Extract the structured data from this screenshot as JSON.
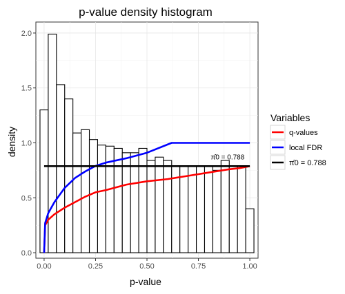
{
  "chart_data": {
    "type": "bar",
    "title": "p-value density histogram",
    "xlabel": "p-value",
    "ylabel": "density",
    "xlim": [
      -0.04,
      1.04
    ],
    "ylim": [
      -0.05,
      2.1
    ],
    "x_ticks": [
      0.0,
      0.25,
      0.5,
      0.75,
      1.0
    ],
    "x_tick_labels": [
      "0.00",
      "0.25",
      "0.50",
      "0.75",
      "1.00"
    ],
    "y_ticks": [
      0.0,
      0.5,
      1.0,
      1.5,
      2.0
    ],
    "y_tick_labels": [
      "0.0",
      "0.5",
      "1.0",
      "1.5",
      "2.0"
    ],
    "grid": true,
    "histogram": {
      "bin_width": 0.04,
      "bin_starts": [
        -0.02,
        0.02,
        0.06,
        0.1,
        0.14,
        0.18,
        0.22,
        0.26,
        0.3,
        0.34,
        0.38,
        0.42,
        0.46,
        0.5,
        0.54,
        0.58,
        0.62,
        0.66,
        0.7,
        0.74,
        0.78,
        0.82,
        0.86,
        0.9,
        0.94,
        0.98
      ],
      "density": [
        1.3,
        1.99,
        1.53,
        1.4,
        1.09,
        1.12,
        1.03,
        0.98,
        0.97,
        0.95,
        0.91,
        0.91,
        0.95,
        0.84,
        0.87,
        0.84,
        0.79,
        0.79,
        0.79,
        0.79,
        0.79,
        0.75,
        0.84,
        0.79,
        0.79,
        0.4
      ]
    },
    "series": [
      {
        "name": "q-values",
        "color": "#ff0000",
        "x": [
          0.0,
          0.005,
          0.02,
          0.05,
          0.1,
          0.15,
          0.2,
          0.25,
          0.3,
          0.4,
          0.5,
          0.6,
          0.7,
          0.8,
          0.9,
          0.95,
          1.0
        ],
        "y": [
          0.0,
          0.25,
          0.3,
          0.35,
          0.41,
          0.46,
          0.51,
          0.55,
          0.57,
          0.62,
          0.65,
          0.67,
          0.7,
          0.73,
          0.76,
          0.77,
          0.788
        ]
      },
      {
        "name": "local FDR",
        "color": "#0000ff",
        "x": [
          0.0,
          0.005,
          0.02,
          0.05,
          0.1,
          0.15,
          0.2,
          0.25,
          0.3,
          0.4,
          0.5,
          0.62,
          0.7,
          0.8,
          0.9,
          1.0
        ],
        "y": [
          0.0,
          0.27,
          0.36,
          0.46,
          0.59,
          0.68,
          0.74,
          0.79,
          0.82,
          0.86,
          0.91,
          1.0,
          1.0,
          1.0,
          1.0,
          1.0
        ]
      },
      {
        "name": "π̂0 = 0.788",
        "color": "#000000",
        "x": [
          0.0,
          1.0
        ],
        "y": [
          0.788,
          0.788
        ]
      }
    ],
    "annotation": {
      "text": "π̂0 = 0.788",
      "x": 0.81,
      "y": 0.85
    },
    "legend": {
      "title": "Variables",
      "position": "right",
      "entries": [
        {
          "label": "q-values",
          "color": "#ff0000"
        },
        {
          "label": "local FDR",
          "color": "#0000ff"
        },
        {
          "label": "π̂0 = 0.788",
          "color": "#000000"
        }
      ]
    }
  }
}
